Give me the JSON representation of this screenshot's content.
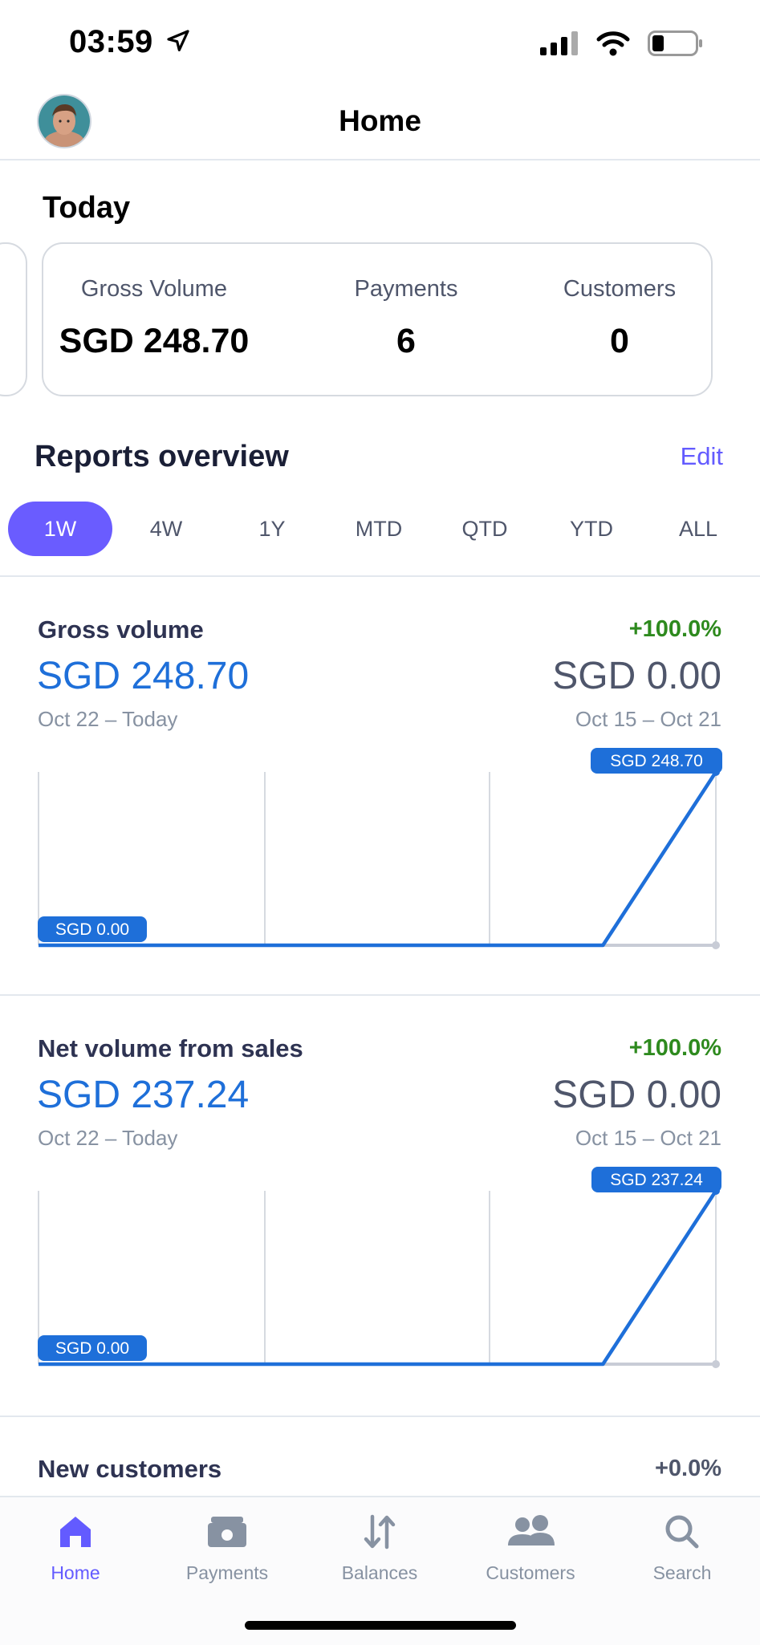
{
  "status": {
    "time": "03:59"
  },
  "nav": {
    "title": "Home"
  },
  "today": {
    "title": "Today",
    "stats": [
      {
        "label": "Gross Volume",
        "value": "SGD 248.70"
      },
      {
        "label": "Payments",
        "value": "6"
      },
      {
        "label": "Customers",
        "value": "0"
      }
    ]
  },
  "reports": {
    "title": "Reports overview",
    "edit_label": "Edit",
    "tabs": [
      "1W",
      "4W",
      "1Y",
      "MTD",
      "QTD",
      "YTD",
      "ALL"
    ],
    "active_tab": "1W"
  },
  "gross": {
    "title": "Gross volume",
    "change": "+100.0%",
    "value": "SGD 248.70",
    "prev_value": "SGD 0.00",
    "range": "Oct 22 – Today",
    "prev_range": "Oct 15 – Oct 21",
    "max_label": "SGD 248.70",
    "min_label": "SGD 0.00"
  },
  "net": {
    "title": "Net volume from sales",
    "change": "+100.0%",
    "value": "SGD 237.24",
    "prev_value": "SGD 0.00",
    "range": "Oct 22 – Today",
    "prev_range": "Oct 15 – Oct 21",
    "max_label": "SGD 237.24",
    "min_label": "SGD 0.00"
  },
  "new_customers": {
    "title": "New customers",
    "change": "+0.0%"
  },
  "tabbar": {
    "items": [
      {
        "label": "Home",
        "icon": "home-icon"
      },
      {
        "label": "Payments",
        "icon": "payments-icon"
      },
      {
        "label": "Balances",
        "icon": "balances-icon"
      },
      {
        "label": "Customers",
        "icon": "customers-icon"
      },
      {
        "label": "Search",
        "icon": "search-icon"
      }
    ]
  },
  "colors": {
    "accent": "#635bff",
    "line": "#1e6fd9",
    "positive": "#2e8a1e"
  },
  "chart_data": [
    {
      "type": "line",
      "series": [
        {
          "values": [
            0,
            0,
            0,
            0,
            0,
            0,
            248.7
          ]
        },
        {
          "values": [
            0,
            0,
            0,
            0,
            0,
            0,
            0
          ]
        }
      ],
      "ylim": [
        0,
        248.7
      ]
    },
    {
      "type": "line",
      "series": [
        {
          "values": [
            0,
            0,
            0,
            0,
            0,
            0,
            237.24
          ]
        },
        {
          "values": [
            0,
            0,
            0,
            0,
            0,
            0,
            0
          ]
        }
      ],
      "ylim": [
        0,
        237.24
      ]
    }
  ]
}
